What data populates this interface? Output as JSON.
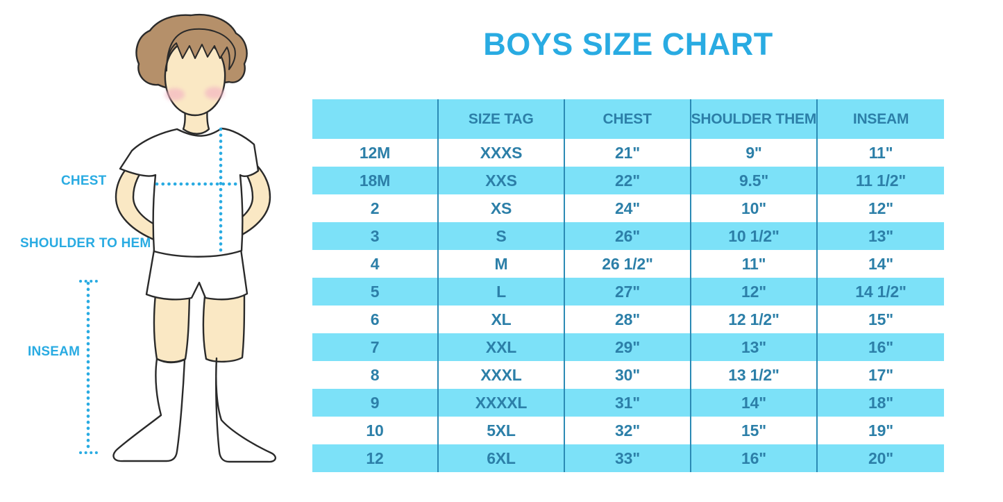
{
  "title": "BOYS SIZE CHART",
  "figure": {
    "illustration": "boy-with-measurement-lines",
    "labels": {
      "chest": "CHEST",
      "shoulder_to_hem": "SHOULDER TO HEM",
      "inseam": "INSEAM"
    }
  },
  "chart_data": {
    "type": "table",
    "title": "BOYS SIZE CHART",
    "columns": [
      "",
      "SIZE TAG",
      "CHEST",
      "SHOULDER THEM",
      "INSEAM"
    ],
    "rows": [
      [
        "12M",
        "XXXS",
        "21\"",
        "9\"",
        "11\""
      ],
      [
        "18M",
        "XXS",
        "22\"",
        "9.5\"",
        "11 1/2\""
      ],
      [
        "2",
        "XS",
        "24\"",
        "10\"",
        "12\""
      ],
      [
        "3",
        "S",
        "26\"",
        "10 1/2\"",
        "13\""
      ],
      [
        "4",
        "M",
        "26 1/2\"",
        "11\"",
        "14\""
      ],
      [
        "5",
        "L",
        "27\"",
        "12\"",
        "14 1/2\""
      ],
      [
        "6",
        "XL",
        "28\"",
        "12 1/2\"",
        "15\""
      ],
      [
        "7",
        "XXL",
        "29\"",
        "13\"",
        "16\""
      ],
      [
        "8",
        "XXXL",
        "30\"",
        "13 1/2\"",
        "17\""
      ],
      [
        "9",
        "XXXXL",
        "31\"",
        "14\"",
        "18\""
      ],
      [
        "10",
        "5XL",
        "32\"",
        "15\"",
        "19\""
      ],
      [
        "12",
        "6XL",
        "33\"",
        "16\"",
        "20\""
      ]
    ]
  },
  "colors": {
    "accent": "#29abe2",
    "band_blue": "#7ce1f8",
    "table_text": "#2c7fa8",
    "table_line": "#2b8ab4",
    "skin": "#fae8c4",
    "hair": "#b5906a",
    "blush": "#f3b3c3"
  }
}
